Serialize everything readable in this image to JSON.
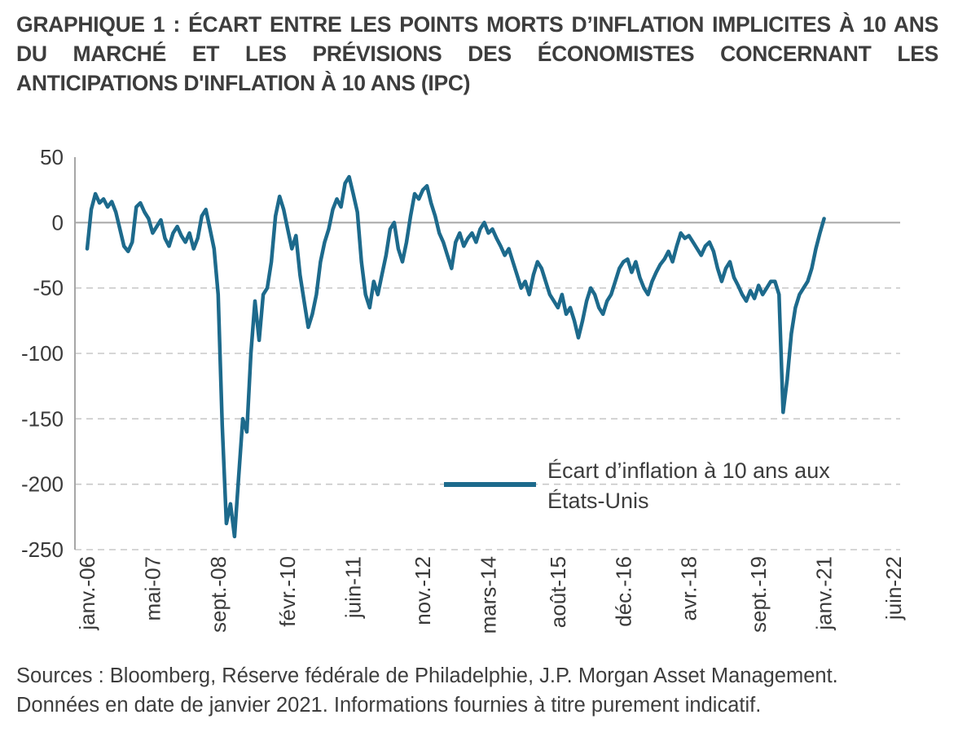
{
  "title": {
    "label": "GRAPHIQUE 1 :",
    "text": "ÉCART ENTRE LES POINTS MORTS D’INFLATION IMPLICITES À 10 ANS DU MARCHÉ ET LES PRÉVISIONS DES ÉCONOMISTES CONCERNANT LES ANTICIPATIONS D'INFLATION À 10 ANS (IPC)"
  },
  "chart_data": {
    "type": "line",
    "title": "Écart entre les points morts d’inflation implicites à 10 ans du marché et les prévisions des économistes concernant les anticipations d'inflation à 10 ans (IPC)",
    "series": [
      {
        "name": "Écart d’inflation à 10 ans aux États-Unis",
        "color": "#1d6a8c",
        "start": "janv.-06",
        "end": "janv.-21",
        "frequency": "monthly",
        "values": [
          -20,
          10,
          22,
          15,
          18,
          12,
          16,
          8,
          -5,
          -18,
          -22,
          -15,
          12,
          15,
          8,
          3,
          -8,
          -3,
          2,
          -12,
          -18,
          -8,
          -3,
          -10,
          -15,
          -8,
          -20,
          -12,
          5,
          10,
          -5,
          -20,
          -55,
          -155,
          -230,
          -215,
          -240,
          -195,
          -150,
          -160,
          -100,
          -60,
          -90,
          -55,
          -50,
          -30,
          5,
          20,
          10,
          -5,
          -20,
          -10,
          -40,
          -60,
          -80,
          -70,
          -55,
          -30,
          -15,
          -5,
          10,
          18,
          12,
          30,
          35,
          22,
          8,
          -30,
          -55,
          -65,
          -45,
          -55,
          -40,
          -25,
          -5,
          0,
          -20,
          -30,
          -15,
          5,
          22,
          18,
          25,
          28,
          15,
          5,
          -8,
          -15,
          -25,
          -35,
          -15,
          -8,
          -18,
          -12,
          -8,
          -15,
          -5,
          0,
          -8,
          -5,
          -12,
          -18,
          -25,
          -20,
          -30,
          -40,
          -50,
          -45,
          -55,
          -40,
          -30,
          -35,
          -45,
          -55,
          -60,
          -65,
          -55,
          -70,
          -65,
          -75,
          -88,
          -75,
          -60,
          -50,
          -55,
          -65,
          -70,
          -60,
          -55,
          -45,
          -35,
          -30,
          -28,
          -38,
          -30,
          -42,
          -50,
          -55,
          -45,
          -38,
          -32,
          -28,
          -22,
          -30,
          -18,
          -8,
          -12,
          -10,
          -15,
          -20,
          -25,
          -18,
          -15,
          -22,
          -35,
          -45,
          -35,
          -30,
          -42,
          -48,
          -55,
          -60,
          -52,
          -58,
          -48,
          -55,
          -50,
          -45,
          -45,
          -55,
          -145,
          -120,
          -85,
          -65,
          -55,
          -50,
          -45,
          -35,
          -20,
          -8,
          3
        ]
      }
    ],
    "x_axis": {
      "tick_labels": [
        "janv.-06",
        "mai-07",
        "sept.-08",
        "févr.-10",
        "juin-11",
        "nov.-12",
        "mars-14",
        "août-15",
        "déc.-16",
        "avr.-18",
        "sept.-19",
        "janv.-21",
        "juin-22"
      ],
      "tick_month_index": [
        0,
        16,
        32,
        49,
        65,
        82,
        98,
        115,
        131,
        147,
        164,
        180,
        197
      ],
      "total_months": 197
    },
    "y_axis": {
      "ticks": [
        50,
        0,
        -50,
        -100,
        -150,
        -200,
        -250
      ],
      "min": -250,
      "max": 50
    },
    "legend": {
      "line1": "Écart d’inflation à 10 ans aux",
      "line2": "États-Unis",
      "position": "inside-lower-middle"
    },
    "grid": "horizontal-dashed"
  },
  "footer": {
    "line1": "Sources : Bloomberg, Réserve fédérale de Philadelphie, J.P. Morgan Asset Management.",
    "line2": "Données en date de janvier 2021. Informations fournies à titre purement indicatif."
  },
  "colors": {
    "line": "#1d6a8c",
    "grid": "#c8c8c8",
    "zero_line": "#a6a6a6",
    "axis": "#a6a6a6",
    "text": "#3d3d3d"
  }
}
